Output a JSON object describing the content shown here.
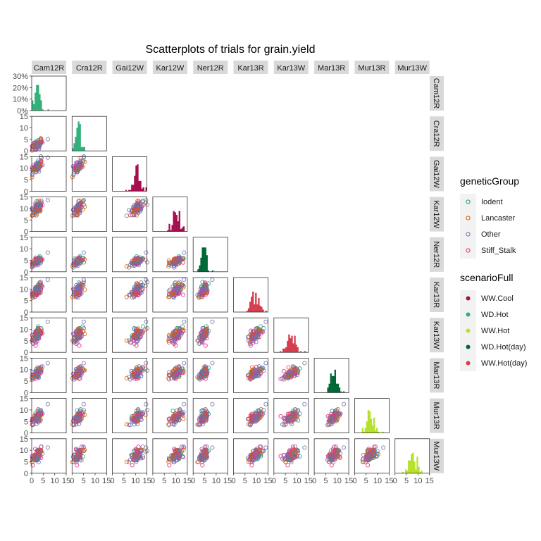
{
  "chart_data": {
    "type": "scatter",
    "title": "Scatterplots of trials for grain.yield",
    "trials": [
      "Cam12R",
      "Cra12R",
      "Gai12W",
      "Kar12W",
      "Ner12R",
      "Kar13R",
      "Kar13W",
      "Mar13R",
      "Mur13R",
      "Mur13W"
    ],
    "trial_scenario": [
      "WD.Hot",
      "WD.Hot",
      "WW.Cool",
      "WW.Cool",
      "WD.Hot(day)",
      "WW.Hot(day)",
      "WW.Hot(day)",
      "WD.Hot(day)",
      "WW.Hot",
      "WW.Hot"
    ],
    "trial_mean": [
      2.4,
      2.6,
      10.5,
      10.0,
      4.5,
      9.4,
      7.5,
      8.3,
      6.8,
      7.4
    ],
    "trial_sd": [
      1.1,
      1.1,
      1.3,
      1.4,
      1.0,
      1.5,
      1.6,
      1.4,
      1.5,
      1.6
    ],
    "xlim": [
      0,
      15
    ],
    "ylim": [
      0,
      15
    ],
    "axis_ticks": [
      "0",
      "5",
      "10",
      "15"
    ],
    "diag_ylim": [
      0,
      0.3
    ],
    "diag_ticks": [
      "0%",
      "10%",
      "20%",
      "30%"
    ],
    "grid": false,
    "legend_position": "right",
    "legends": [
      {
        "title": "geneticGroup",
        "style": "open",
        "entries": [
          {
            "label": "Iodent",
            "color": "#1b9e77"
          },
          {
            "label": "Lancaster",
            "color": "#d95f02"
          },
          {
            "label": "Other",
            "color": "#7570b3"
          },
          {
            "label": "Stiff_Stalk",
            "color": "#e7298a"
          }
        ]
      },
      {
        "title": "scenarioFull",
        "style": "filled",
        "entries": [
          {
            "label": "WW.Cool",
            "color": "#a50f4e"
          },
          {
            "label": "WD.Hot",
            "color": "#33b07a"
          },
          {
            "label": "WW.Hot",
            "color": "#b7e02f"
          },
          {
            "label": "WD.Hot(day)",
            "color": "#006837"
          },
          {
            "label": "WW.Hot(day)",
            "color": "#d53e4f"
          }
        ]
      }
    ]
  }
}
